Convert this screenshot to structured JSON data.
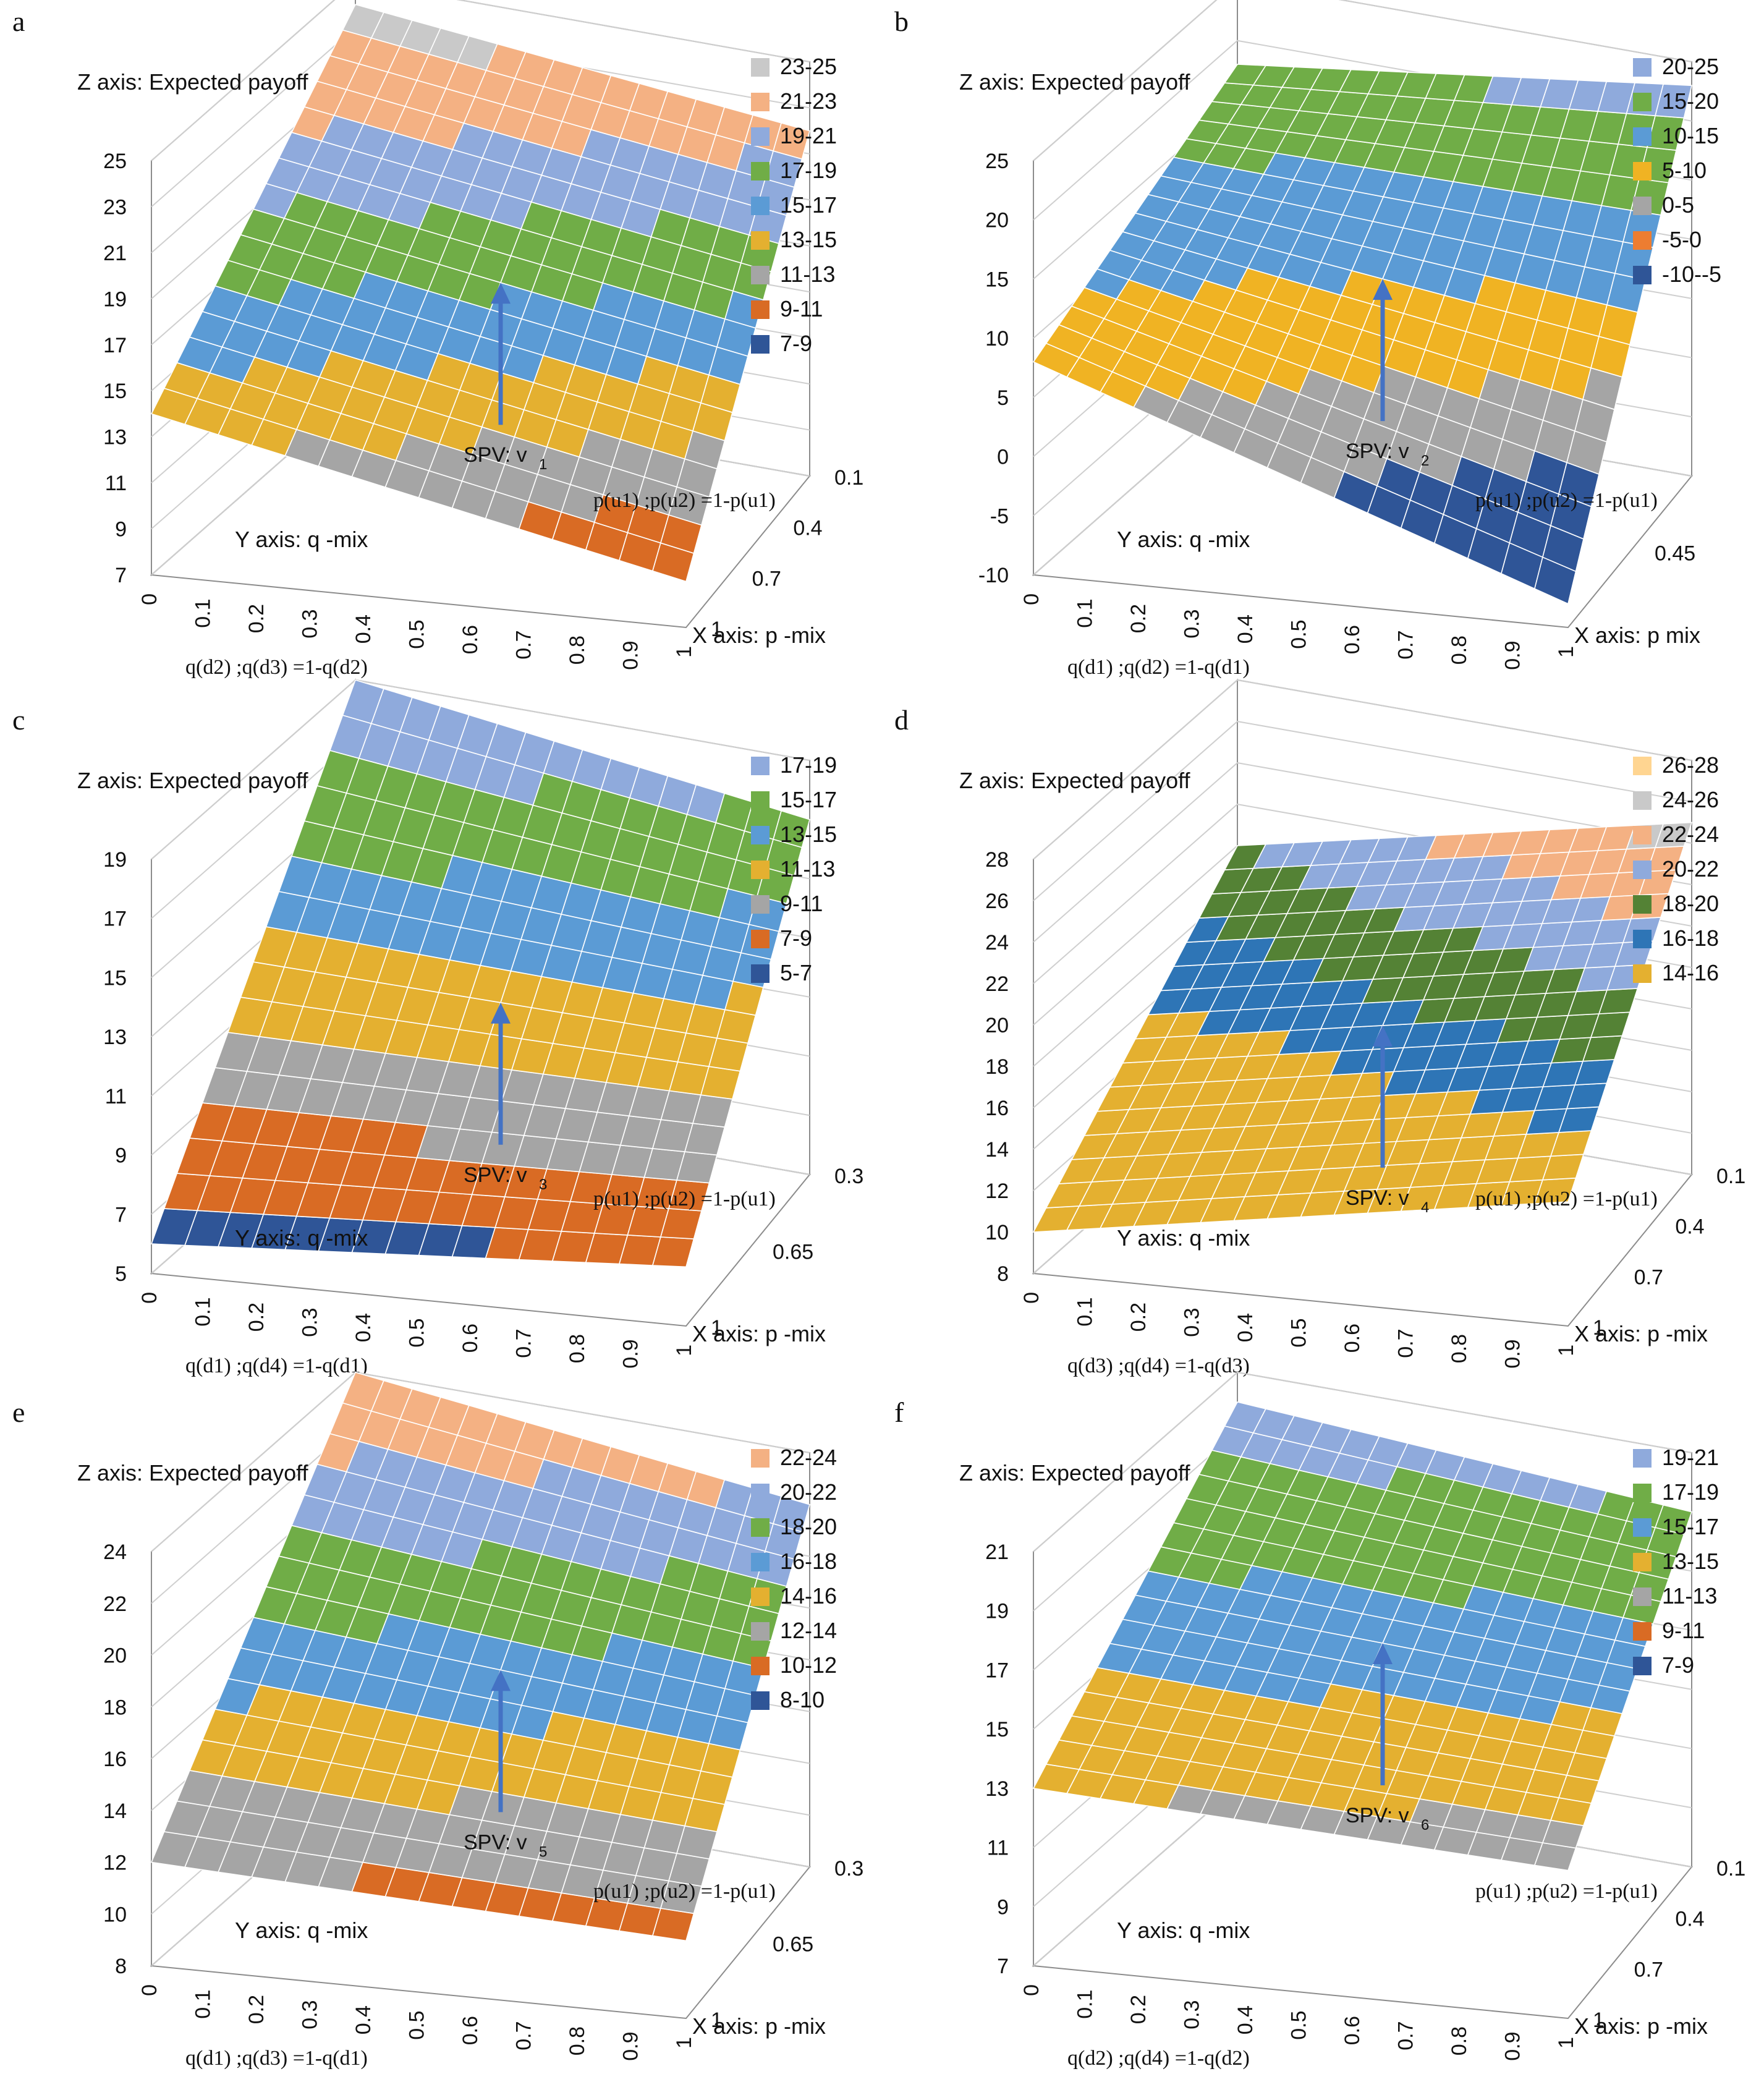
{
  "colors": {
    "text": "#111111",
    "axis": "#8c8c8c",
    "grid": "#cfcfcf",
    "arrow": "#4472c4",
    "mesh": "#ffffff"
  },
  "chart_data": [
    {
      "panel": "a",
      "type": "surface",
      "zlabel": "Z axis: Expected payoff",
      "zticks": [
        "25",
        "23",
        "21",
        "19",
        "17",
        "15",
        "13",
        "11",
        "9",
        "7"
      ],
      "zlim": [
        7,
        25
      ],
      "ylabel": "Y axis: q -mix",
      "xlabel": "X axis: p -mix",
      "yformula": "q(d2) ;q(d3) =1-q(d2)",
      "xformula": "p(u1) ;p(u2) =1-p(u1)",
      "yticks": [
        "0",
        "0.1",
        "0.2",
        "0.3",
        "0.4",
        "0.5",
        "0.6",
        "0.7",
        "0.8",
        "0.9",
        "1"
      ],
      "xticks": [
        "0.1",
        "0.4",
        "0.7",
        "1"
      ],
      "spv": "SPV: v",
      "spv_sub": "1",
      "corners": {
        "front_left": 14,
        "back_left": 24,
        "back_right": 22,
        "front_right": 9
      },
      "legend": [
        {
          "label": "23-25",
          "color": "#c9c9c9"
        },
        {
          "label": "21-23",
          "color": "#f4b183"
        },
        {
          "label": "19-21",
          "color": "#8faadc"
        },
        {
          "label": "17-19",
          "color": "#70ad47"
        },
        {
          "label": "15-17",
          "color": "#5b9bd5"
        },
        {
          "label": "13-15",
          "color": "#e4b030"
        },
        {
          "label": "11-13",
          "color": "#a5a5a5"
        },
        {
          "label": "9-11",
          "color": "#d96b24"
        },
        {
          "label": "7-9",
          "color": "#2f5597"
        }
      ]
    },
    {
      "panel": "b",
      "type": "surface",
      "zlabel": "Z axis: Expected payoff",
      "zticks": [
        "25",
        "20",
        "15",
        "10",
        "5",
        "0",
        "-5",
        "-10"
      ],
      "zlim": [
        -10,
        25
      ],
      "ylabel": "Y axis: q -mix",
      "xlabel": "X axis: p mix",
      "yformula": "q(d1) ;q(d2) =1-q(d1)",
      "xformula": "p(u1) ;p(u2) =1-p(u1)",
      "yticks": [
        "0",
        "0.1",
        "0.2",
        "0.3",
        "0.4",
        "0.5",
        "0.6",
        "0.7",
        "0.8",
        "0.9",
        "1"
      ],
      "xticks": [
        "0.45"
      ],
      "spv": "SPV: v",
      "spv_sub": "2",
      "corners": {
        "front_left": 8,
        "back_left": 18,
        "back_right": 23,
        "front_right": -8
      },
      "legend": [
        {
          "label": "20-25",
          "color": "#8faadc"
        },
        {
          "label": "15-20",
          "color": "#70ad47"
        },
        {
          "label": "10-15",
          "color": "#5b9bd5"
        },
        {
          "label": "5-10",
          "color": "#f0b323"
        },
        {
          "label": "0-5",
          "color": "#a5a5a5"
        },
        {
          "label": "-5-0",
          "color": "#ed7d31"
        },
        {
          "label": "-10--5",
          "color": "#2f5597"
        }
      ]
    },
    {
      "panel": "c",
      "type": "surface",
      "zlabel": "Z axis: Expected payoff",
      "zticks": [
        "19",
        "17",
        "15",
        "13",
        "11",
        "9",
        "7",
        "5"
      ],
      "zlim": [
        5,
        19
      ],
      "ylabel": "Y axis: q -mix",
      "xlabel": "X axis: p -mix",
      "yformula": "q(d1) ;q(d4) =1-q(d1)",
      "xformula": "p(u1) ;p(u2) =1-p(u1)",
      "yticks": [
        "0",
        "0.1",
        "0.2",
        "0.3",
        "0.4",
        "0.5",
        "0.6",
        "0.7",
        "0.8",
        "0.9",
        "1"
      ],
      "xticks": [
        "0.3",
        "0.65",
        "1"
      ],
      "spv": "SPV: v",
      "spv_sub": "3",
      "corners": {
        "front_left": 6,
        "back_left": 19,
        "back_right": 17,
        "front_right": 7
      },
      "legend": [
        {
          "label": "17-19",
          "color": "#8faadc"
        },
        {
          "label": "15-17",
          "color": "#70ad47"
        },
        {
          "label": "13-15",
          "color": "#5b9bd5"
        },
        {
          "label": "11-13",
          "color": "#e4b030"
        },
        {
          "label": "9-11",
          "color": "#a5a5a5"
        },
        {
          "label": "7-9",
          "color": "#d96b24"
        },
        {
          "label": "5-7",
          "color": "#2f5597"
        }
      ]
    },
    {
      "panel": "d",
      "type": "surface",
      "zlabel": "Z axis: Expected payoff",
      "zticks": [
        "28",
        "26",
        "24",
        "22",
        "20",
        "18",
        "16",
        "14",
        "12",
        "10",
        "8"
      ],
      "zlim": [
        8,
        28
      ],
      "ylabel": "Y axis: q -mix",
      "xlabel": "X axis: p -mix",
      "yformula": "q(d3) ;q(d4) =1-q(d3)",
      "xformula": "p(u1) ;p(u2) =1-p(u1)",
      "yticks": [
        "0",
        "0.1",
        "0.2",
        "0.3",
        "0.4",
        "0.5",
        "0.6",
        "0.7",
        "0.8",
        "0.9",
        "1"
      ],
      "xticks": [
        "0.1",
        "0.4",
        "0.7",
        "1"
      ],
      "spv": "SPV: v",
      "spv_sub": "4",
      "corners": {
        "front_left": 10,
        "back_left": 20,
        "back_right": 25,
        "front_right": 14
      },
      "legend": [
        {
          "label": "26-28",
          "color": "#ffd591"
        },
        {
          "label": "24-26",
          "color": "#c9c9c9"
        },
        {
          "label": "22-24",
          "color": "#f4b183"
        },
        {
          "label": "20-22",
          "color": "#8faadc"
        },
        {
          "label": "18-20",
          "color": "#548235"
        },
        {
          "label": "16-18",
          "color": "#2e75b6"
        },
        {
          "label": "14-16",
          "color": "#e4b030"
        }
      ]
    },
    {
      "panel": "e",
      "type": "surface",
      "zlabel": "Z axis: Expected payoff",
      "zticks": [
        "24",
        "22",
        "20",
        "18",
        "16",
        "14",
        "12",
        "10",
        "8"
      ],
      "zlim": [
        8,
        24
      ],
      "ylabel": "Y axis: q -mix",
      "xlabel": "X axis: p -mix",
      "yformula": "q(d1) ;q(d3) =1-q(d1)",
      "xformula": "p(u1) ;p(u2) =1-p(u1)",
      "yticks": [
        "0",
        "0.1",
        "0.2",
        "0.3",
        "0.4",
        "0.5",
        "0.6",
        "0.7",
        "0.8",
        "0.9",
        "1"
      ],
      "xticks": [
        "0.3",
        "0.65",
        "1"
      ],
      "spv": "SPV: v",
      "spv_sub": "5",
      "corners": {
        "front_left": 12,
        "back_left": 24,
        "back_right": 22,
        "front_right": 11
      },
      "legend": [
        {
          "label": "22-24",
          "color": "#f4b183"
        },
        {
          "label": "20-22",
          "color": "#8faadc"
        },
        {
          "label": "18-20",
          "color": "#70ad47"
        },
        {
          "label": "16-18",
          "color": "#5b9bd5"
        },
        {
          "label": "14-16",
          "color": "#e4b030"
        },
        {
          "label": "12-14",
          "color": "#a5a5a5"
        },
        {
          "label": "10-12",
          "color": "#d96b24"
        },
        {
          "label": "8-10",
          "color": "#2f5597"
        }
      ]
    },
    {
      "panel": "f",
      "type": "surface",
      "zlabel": "Z axis: Expected payoff",
      "zticks": [
        "21",
        "19",
        "17",
        "15",
        "13",
        "11",
        "9",
        "7"
      ],
      "zlim": [
        7,
        21
      ],
      "ylabel": "Y axis: q -mix",
      "xlabel": "X axis: p -mix",
      "yformula": "q(d2) ;q(d4) =1-q(d2)",
      "xformula": "p(u1) ;p(u2) =1-p(u1)",
      "yticks": [
        "0",
        "0.1",
        "0.2",
        "0.3",
        "0.4",
        "0.5",
        "0.6",
        "0.7",
        "0.8",
        "0.9",
        "1"
      ],
      "xticks": [
        "0.1",
        "0.4",
        "0.7",
        "1"
      ],
      "spv": "SPV: v",
      "spv_sub": "6",
      "corners": {
        "front_left": 13,
        "back_left": 20,
        "back_right": 19,
        "front_right": 12
      },
      "legend": [
        {
          "label": "19-21",
          "color": "#8faadc"
        },
        {
          "label": "17-19",
          "color": "#70ad47"
        },
        {
          "label": "15-17",
          "color": "#5b9bd5"
        },
        {
          "label": "13-15",
          "color": "#e4b030"
        },
        {
          "label": "11-13",
          "color": "#a5a5a5"
        },
        {
          "label": "9-11",
          "color": "#d96b24"
        },
        {
          "label": "7-9",
          "color": "#2f5597"
        }
      ]
    }
  ]
}
